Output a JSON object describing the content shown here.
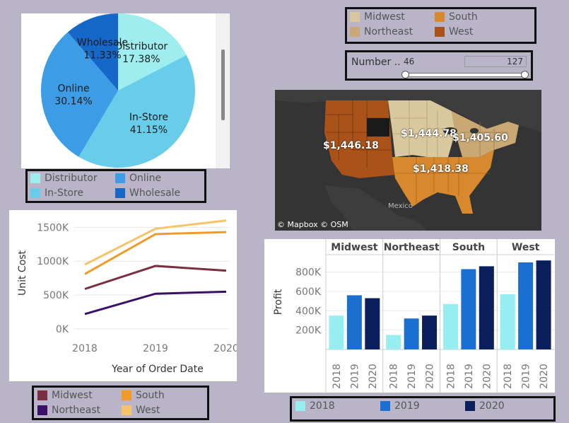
{
  "region_legend_top": {
    "items": [
      {
        "label": "Midwest",
        "color": "#d9c79d"
      },
      {
        "label": "South",
        "color": "#d8882d"
      },
      {
        "label": "Northeast",
        "color": "#c9a874"
      },
      {
        "label": "West",
        "color": "#a9531a"
      }
    ]
  },
  "slider": {
    "label": "Number ..",
    "min_value": "46",
    "max_value": "127"
  },
  "map": {
    "labels": [
      "$1,446.18",
      "$1,444.78",
      "$1,405.60",
      "$1,418.38"
    ],
    "country_label": "Mexico",
    "attribution": "© Mapbox © OSM"
  },
  "pie_legend": {
    "items": [
      {
        "label": "Distributor",
        "color": "#9eeef0"
      },
      {
        "label": "Online",
        "color": "#3c9de6"
      },
      {
        "label": "In-Store",
        "color": "#67cdeb"
      },
      {
        "label": "Wholesale",
        "color": "#1567c8"
      }
    ]
  },
  "line_legend": {
    "items": [
      {
        "label": "Midwest",
        "color": "#7a2e41"
      },
      {
        "label": "South",
        "color": "#f09a2a"
      },
      {
        "label": "Northeast",
        "color": "#3a1068"
      },
      {
        "label": "West",
        "color": "#f6c36a"
      }
    ]
  },
  "bar_legend": {
    "items": [
      {
        "label": "2018",
        "color": "#96eef0"
      },
      {
        "label": "2019",
        "color": "#1b6fd1"
      },
      {
        "label": "2020",
        "color": "#0b1f5c"
      }
    ]
  },
  "chart_data": [
    {
      "type": "pie",
      "slices": [
        {
          "label": "Distributor",
          "value": 17.38,
          "display": "17.38%",
          "color": "#9eeef0"
        },
        {
          "label": "In-Store",
          "value": 41.15,
          "display": "41.15%",
          "color": "#67cdeb"
        },
        {
          "label": "Online",
          "value": 30.14,
          "display": "30.14%",
          "color": "#3c9de6"
        },
        {
          "label": "Wholesale",
          "value": 11.33,
          "display": "11.33%",
          "color": "#1567c8"
        }
      ]
    },
    {
      "type": "line",
      "title": "",
      "xlabel": "Year of Order Date",
      "ylabel": "Unit Cost",
      "x": [
        "2018",
        "2019",
        "2020"
      ],
      "ylim": [
        0,
        1650000
      ],
      "yticks": [
        {
          "v": 0,
          "label": "0K"
        },
        {
          "v": 500000,
          "label": "500K"
        },
        {
          "v": 1000000,
          "label": "1000K"
        },
        {
          "v": 1500000,
          "label": "1500K"
        }
      ],
      "grid": true,
      "series": [
        {
          "name": "West",
          "color": "#f6c36a",
          "values": [
            950000,
            1480000,
            1600000
          ]
        },
        {
          "name": "South",
          "color": "#f09a2a",
          "values": [
            810000,
            1400000,
            1430000
          ]
        },
        {
          "name": "Midwest",
          "color": "#7a2e41",
          "values": [
            590000,
            930000,
            860000
          ]
        },
        {
          "name": "Northeast",
          "color": "#3a1068",
          "values": [
            220000,
            520000,
            550000
          ]
        }
      ]
    },
    {
      "type": "bar",
      "ylabel": "Profit",
      "ylim": [
        0,
        980000
      ],
      "yticks": [
        {
          "v": 200000,
          "label": "200K"
        },
        {
          "v": 400000,
          "label": "400K"
        },
        {
          "v": 600000,
          "label": "600K"
        },
        {
          "v": 800000,
          "label": "800K"
        }
      ],
      "grid": true,
      "categories": [
        "2018",
        "2019",
        "2020"
      ],
      "colors": [
        "#96eef0",
        "#1b6fd1",
        "#0b1f5c"
      ],
      "panels": [
        {
          "name": "Midwest",
          "values": [
            350000,
            560000,
            530000
          ]
        },
        {
          "name": "Northeast",
          "values": [
            150000,
            320000,
            350000
          ]
        },
        {
          "name": "South",
          "values": [
            470000,
            830000,
            860000
          ]
        },
        {
          "name": "West",
          "values": [
            570000,
            900000,
            920000
          ]
        }
      ]
    }
  ]
}
